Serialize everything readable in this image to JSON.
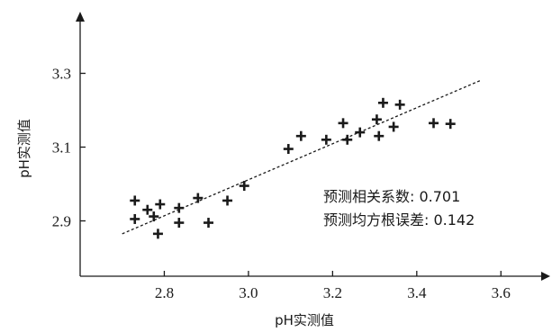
{
  "chart_data": {
    "type": "scatter",
    "xlabel": "pH实测值",
    "ylabel": "pH实测值",
    "xlim": [
      2.6,
      3.7
    ],
    "ylim": [
      2.75,
      3.45
    ],
    "xticks": [
      "2.8",
      "3.0",
      "3.2",
      "3.4",
      "3.6"
    ],
    "yticks": [
      "2.9",
      "3.1",
      "3.3"
    ],
    "grid": false,
    "points": [
      [
        2.73,
        2.955
      ],
      [
        2.73,
        2.905
      ],
      [
        2.76,
        2.93
      ],
      [
        2.775,
        2.912
      ],
      [
        2.79,
        2.945
      ],
      [
        2.785,
        2.865
      ],
      [
        2.835,
        2.935
      ],
      [
        2.835,
        2.895
      ],
      [
        2.88,
        2.962
      ],
      [
        2.905,
        2.895
      ],
      [
        2.95,
        2.955
      ],
      [
        2.99,
        2.995
      ],
      [
        3.095,
        3.095
      ],
      [
        3.125,
        3.13
      ],
      [
        3.185,
        3.12
      ],
      [
        3.225,
        3.165
      ],
      [
        3.235,
        3.12
      ],
      [
        3.265,
        3.14
      ],
      [
        3.305,
        3.175
      ],
      [
        3.31,
        3.13
      ],
      [
        3.32,
        3.22
      ],
      [
        3.345,
        3.155
      ],
      [
        3.36,
        3.215
      ],
      [
        3.44,
        3.165
      ],
      [
        3.48,
        3.163
      ]
    ],
    "fit_line": {
      "x": [
        2.7,
        3.55
      ],
      "y": [
        2.865,
        3.28
      ],
      "style": "dashed"
    },
    "annotations": [
      "预测相关系数: 0.701",
      "预测均方根误差: 0.142"
    ]
  }
}
